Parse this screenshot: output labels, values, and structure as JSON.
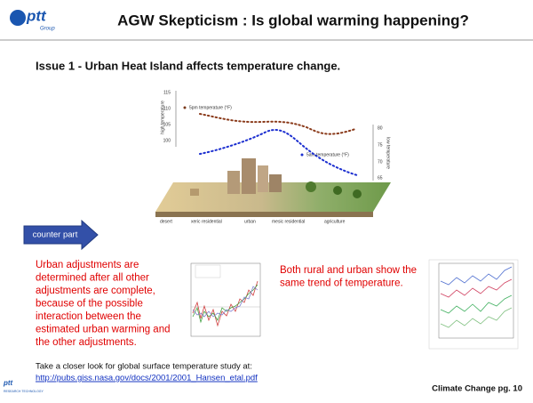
{
  "header": {
    "logo": "ptt",
    "logo_sub": "Group",
    "title": "AGW Skepticism : Is global warming happening?"
  },
  "subtitle": "Issue 1 - Urban Heat Island affects temperature change.",
  "figure": {
    "left_axis_label": "high temperature",
    "left_ticks": [
      "115",
      "110",
      "105",
      "100"
    ],
    "right_axis_label": "low temperature",
    "right_ticks": [
      "80",
      "75",
      "70",
      "65"
    ],
    "legend": [
      "5pm temperature (°F)",
      "5am temperature (°F)"
    ],
    "zones": [
      "desert",
      "xeric residential",
      "urban",
      "mesic residential",
      "agriculture"
    ]
  },
  "button": "counter part",
  "left_text": [
    "Urban adjustments are",
    "determined after all other",
    "adjustments are complete,",
    "because of the possible",
    "interaction between the",
    "estimated urban warming and",
    "the other adjustments."
  ],
  "right_text": [
    "Both rural and urban show the",
    "same trend of temperature."
  ],
  "note": "Take a closer look for global surface temperature study at:",
  "link": "http://pubs.giss.nasa.gov/docs/2001/2001_Hansen_etal.pdf",
  "footer": {
    "page": "Climate Change pg. 10",
    "logo": "ptt",
    "logo_sub": "RESEARCH TECHNOLOGY"
  }
}
